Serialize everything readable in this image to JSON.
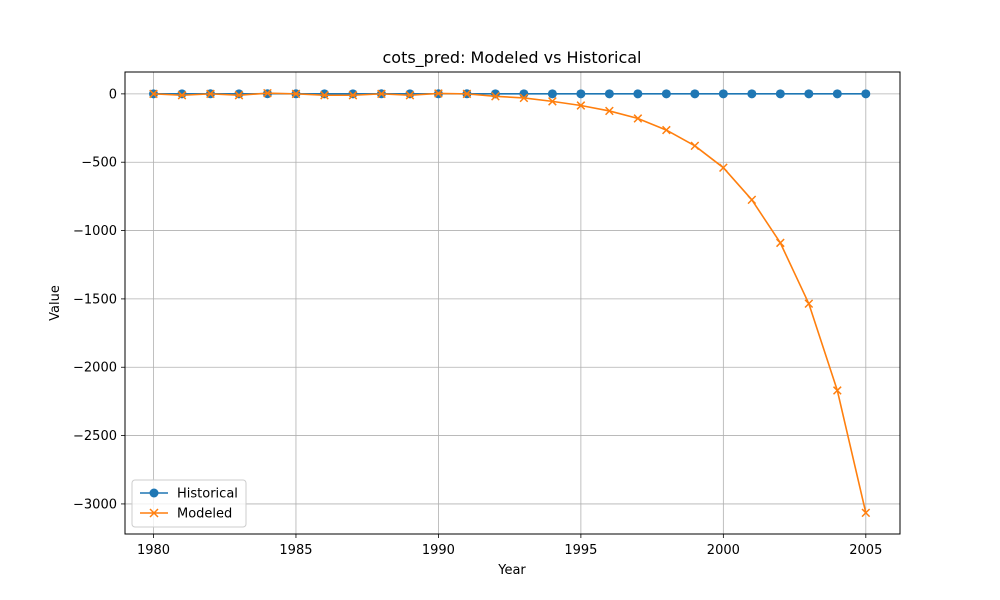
{
  "chart_data": {
    "type": "line",
    "title": "cots_pred: Modeled vs Historical",
    "xlabel": "Year",
    "ylabel": "Value",
    "xlim": [
      1979,
      2006.2
    ],
    "ylim": [
      -3220,
      160
    ],
    "xticks": [
      1980,
      1985,
      1990,
      1995,
      2000,
      2005
    ],
    "yticks": [
      0,
      -500,
      -1000,
      -1500,
      -2000,
      -2500,
      -3000
    ],
    "grid": true,
    "legend_position": "lower-left",
    "x": [
      1980,
      1981,
      1982,
      1983,
      1984,
      1985,
      1986,
      1987,
      1988,
      1989,
      1990,
      1991,
      1992,
      1993,
      1994,
      1995,
      1996,
      1997,
      1998,
      1999,
      2000,
      2001,
      2002,
      2003,
      2004,
      2005
    ],
    "series": [
      {
        "name": "Historical",
        "color": "#1f77b4",
        "marker": "circle",
        "values": [
          0.3,
          0.2,
          0.5,
          0.4,
          1.2,
          0.6,
          0.2,
          0.3,
          0.5,
          0.3,
          0.8,
          0.5,
          0.2,
          0.1,
          0.1,
          0.1,
          0.1,
          0.1,
          0.1,
          0.1,
          0.1,
          0.1,
          0.1,
          0.1,
          0.1,
          0.1
        ]
      },
      {
        "name": "Modeled",
        "color": "#ff7f0e",
        "marker": "x",
        "values": [
          0,
          -10,
          0,
          -10,
          5,
          0,
          -10,
          -10,
          0,
          -10,
          3,
          0,
          -18,
          -30,
          -55,
          -85,
          -125,
          -180,
          -265,
          -380,
          -540,
          -775,
          -1090,
          -1535,
          -2170,
          -3065
        ]
      }
    ]
  }
}
